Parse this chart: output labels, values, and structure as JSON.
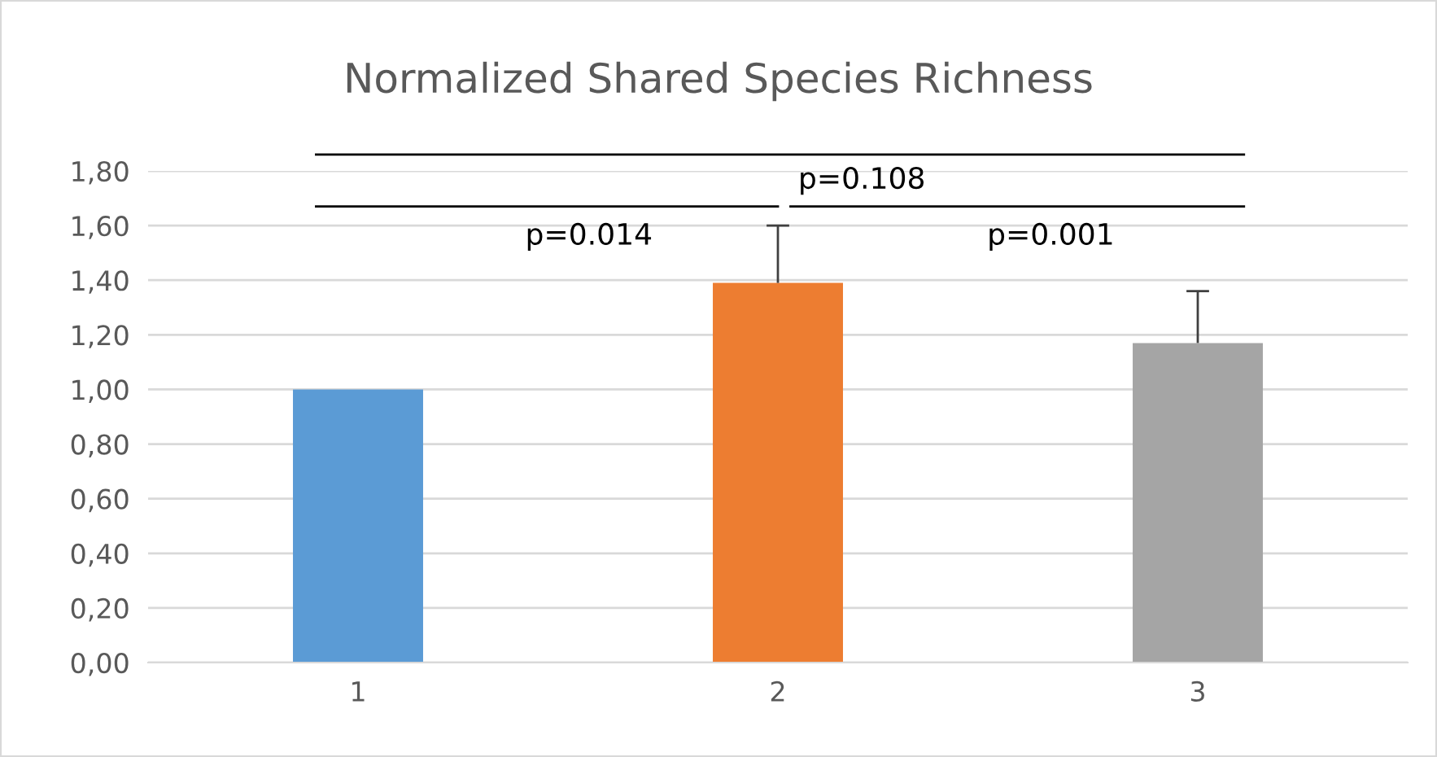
{
  "chart_data": {
    "type": "bar",
    "title": "Normalized Shared Species Richness",
    "categories": [
      "1",
      "2",
      "3"
    ],
    "values": [
      1.0,
      1.39,
      1.17
    ],
    "colors": [
      "#5b9bd5",
      "#ed7d31",
      "#a5a5a5"
    ],
    "errors": [
      null,
      [
        1.39,
        1.6
      ],
      [
        1.17,
        1.36
      ]
    ],
    "ylim": [
      0,
      1.8
    ],
    "yticks": [
      {
        "value": 0,
        "label": "0,00"
      },
      {
        "value": 0.2,
        "label": "0,20"
      },
      {
        "value": 0.4,
        "label": "0,40"
      },
      {
        "value": 0.6,
        "label": "0,60"
      },
      {
        "value": 0.8,
        "label": "0,80"
      },
      {
        "value": 1.0,
        "label": "1,00"
      },
      {
        "value": 1.2,
        "label": "1,20"
      },
      {
        "value": 1.4,
        "label": "1,40"
      },
      {
        "value": 1.6,
        "label": "1,60"
      },
      {
        "value": 1.8,
        "label": "1,80"
      }
    ],
    "grid": "y",
    "annotations": [
      "p=0.108",
      "p=0.014",
      "p=0.001"
    ]
  }
}
